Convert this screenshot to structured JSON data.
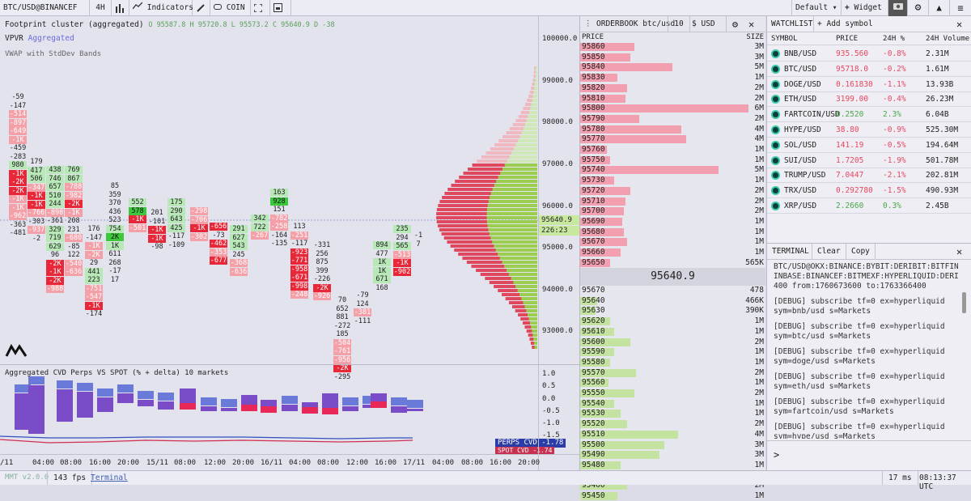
{
  "toolbar": {
    "symbol": "BTC/USD@BINANCEF",
    "timeframe": "4H",
    "indicators": "Indicators",
    "coin": "COIN",
    "layout": "Default",
    "widget": "Widget"
  },
  "chart": {
    "title": "Footprint cluster (aggregated)",
    "ohlc": "O 95587.8 H 95720.8 L 95573.2 C 95640.9 D -38",
    "vpvr": "VPVR",
    "vpvr_sub": "Aggregated",
    "vwap": "VWAP with StdDev Bands",
    "price_ticks": [
      "100000.0",
      "99000.0",
      "98000.0",
      "97000.0",
      "96000.0",
      "95500.0",
      "95000.0",
      "94000.0",
      "93000.0"
    ],
    "current_price": "95640.9",
    "countdown": "226:23",
    "cvd_title": "Aggregated CVD Perps VS SPOT (% + delta) 10 markets",
    "cvd_ticks": [
      "1.0",
      "0.5",
      "0.0",
      "-0.5",
      "-1.0",
      "-1.5"
    ],
    "cvd_perps_label": "PERPS CVD",
    "cvd_perps_value": "-1.78",
    "cvd_spot_label": "SPOT CVD",
    "cvd_spot_value": "-1.74",
    "time_ticks": [
      "/11",
      "04:00",
      "08:00",
      "16:00",
      "20:00",
      "15/11",
      "08:00",
      "12:00",
      "20:00",
      "16/11",
      "04:00",
      "08:00",
      "12:00",
      "16:00",
      "17/11",
      "04:00",
      "08:00",
      "16:00",
      "20:00",
      "18/11"
    ]
  },
  "footprint": [
    {
      "cells": [
        [
          "-59",
          "n"
        ],
        [
          "-147",
          "n"
        ],
        [
          "-514",
          "r1"
        ],
        [
          "-897",
          "r1"
        ],
        [
          "-649",
          "r1"
        ],
        [
          "-1K",
          "r1"
        ],
        [
          "-459",
          "n"
        ],
        [
          "-283",
          "n"
        ],
        [
          "980",
          "g1"
        ],
        [
          "-1K",
          "r2"
        ],
        [
          "-2K",
          "r2"
        ],
        [
          "-2K",
          "r2"
        ],
        [
          "-1K",
          "r1"
        ],
        [
          "-1K",
          "r1"
        ],
        [
          "-962",
          "r1"
        ],
        [
          "-363",
          "n"
        ],
        [
          "-481",
          "n"
        ]
      ]
    },
    {
      "cells": [
        [
          "179",
          "n"
        ],
        [
          "417",
          "g1"
        ],
        [
          "506",
          "g1"
        ],
        [
          "-347",
          "r1"
        ],
        [
          "-1K",
          "r2"
        ],
        [
          "-1K",
          "r2"
        ],
        [
          "-766",
          "r1"
        ],
        [
          "-303",
          "n"
        ],
        [
          "-937",
          "r1"
        ],
        [
          "-2",
          "n"
        ]
      ]
    },
    {
      "cells": [
        [
          "438",
          "g1"
        ],
        [
          "746",
          "g1"
        ],
        [
          "657",
          "g1"
        ],
        [
          "510",
          "g1"
        ],
        [
          "244",
          "g1"
        ],
        [
          "-898",
          "r1"
        ],
        [
          "-361",
          "n"
        ],
        [
          "329",
          "g1"
        ],
        [
          "719",
          "g1"
        ],
        [
          "629",
          "g1"
        ],
        [
          "96",
          "n"
        ],
        [
          "-2K",
          "r2"
        ],
        [
          "-1K",
          "r2"
        ],
        [
          "-2K",
          "r2"
        ],
        [
          "-988",
          "r1"
        ]
      ]
    },
    {
      "cells": [
        [
          "769",
          "g1"
        ],
        [
          "867",
          "g1"
        ],
        [
          "-788",
          "r1"
        ],
        [
          "-982",
          "r1"
        ],
        [
          "-2K",
          "r2"
        ],
        [
          "-1K",
          "r1"
        ],
        [
          "208",
          "n"
        ],
        [
          "231",
          "n"
        ],
        [
          "-680",
          "r1"
        ],
        [
          "-85",
          "n"
        ],
        [
          "122",
          "n"
        ],
        [
          "-540",
          "r1"
        ],
        [
          "-636",
          "r1"
        ]
      ]
    },
    {
      "cells": [
        [
          "176",
          "n"
        ],
        [
          "-147",
          "n"
        ],
        [
          "-1K",
          "r1"
        ],
        [
          "-2K",
          "r1"
        ],
        [
          "29",
          "n"
        ],
        [
          "441",
          "g1"
        ],
        [
          "223",
          "g1"
        ],
        [
          "-751",
          "r1"
        ],
        [
          "-547",
          "r1"
        ],
        [
          "-1K",
          "r2"
        ],
        [
          "-174",
          "n"
        ]
      ]
    },
    {
      "cells": [
        [
          "85",
          "n"
        ],
        [
          "359",
          "n"
        ],
        [
          "370",
          "n"
        ],
        [
          "436",
          "n"
        ],
        [
          "523",
          "n"
        ],
        [
          "754",
          "g1"
        ],
        [
          "2K",
          "g2"
        ],
        [
          "1K",
          "g1"
        ],
        [
          "611",
          "n"
        ],
        [
          "268",
          "n"
        ],
        [
          "-17",
          "n"
        ],
        [
          "17",
          "n"
        ]
      ]
    },
    {
      "cells": [
        [
          "552",
          "g1"
        ],
        [
          "578",
          "g2"
        ],
        [
          "-1K",
          "r2"
        ],
        [
          "-501",
          "r1"
        ]
      ]
    },
    {
      "cells": [
        [
          "201",
          "n"
        ],
        [
          "-101",
          "n"
        ],
        [
          "-1K",
          "r2"
        ],
        [
          "-1K",
          "r2"
        ],
        [
          "-98",
          "n"
        ]
      ]
    },
    {
      "cells": [
        [
          "175",
          "g1"
        ],
        [
          "290",
          "g1"
        ],
        [
          "643",
          "g1"
        ],
        [
          "425",
          "g1"
        ],
        [
          "-117",
          "n"
        ],
        [
          "-109",
          "n"
        ]
      ]
    },
    {
      "cells": [
        [
          "-298",
          "r1"
        ],
        [
          "-706",
          "r1"
        ],
        [
          "-1K",
          "r2"
        ],
        [
          "-302",
          "r1"
        ]
      ]
    },
    {
      "cells": [
        [
          "-656",
          "r2"
        ],
        [
          "-73",
          "n"
        ],
        [
          "-462",
          "r2"
        ],
        [
          "-353",
          "r1"
        ],
        [
          "-677",
          "r2"
        ]
      ]
    },
    {
      "cells": [
        [
          "291",
          "g1"
        ],
        [
          "627",
          "g1"
        ],
        [
          "543",
          "g1"
        ],
        [
          "245",
          "n"
        ],
        [
          "-368",
          "r1"
        ],
        [
          "-636",
          "r1"
        ]
      ]
    },
    {
      "cells": [
        [
          "342",
          "g1"
        ],
        [
          "722",
          "g1"
        ],
        [
          "-267",
          "r1"
        ]
      ]
    },
    {
      "cells": [
        [
          "163",
          "g1"
        ],
        [
          "928",
          "g2"
        ],
        [
          "151",
          "n"
        ],
        [
          "-782",
          "r1"
        ],
        [
          "-258",
          "r1"
        ],
        [
          "-164",
          "n"
        ],
        [
          "-135",
          "n"
        ]
      ]
    },
    {
      "cells": [
        [
          "113",
          "n"
        ],
        [
          "-251",
          "r1"
        ],
        [
          "-117",
          "n"
        ],
        [
          "-923",
          "r2"
        ],
        [
          "-771",
          "r2"
        ],
        [
          "-958",
          "r2"
        ],
        [
          "-671",
          "r2"
        ],
        [
          "-998",
          "r2"
        ],
        [
          "-248",
          "r1"
        ]
      ]
    },
    {
      "cells": [
        [
          "-331",
          "n"
        ],
        [
          "256",
          "n"
        ],
        [
          "875",
          "n"
        ],
        [
          "399",
          "n"
        ],
        [
          "-226",
          "n"
        ],
        [
          "-2K",
          "r2"
        ],
        [
          "-926",
          "r1"
        ]
      ]
    },
    {
      "cells": [
        [
          "70",
          "n"
        ],
        [
          "652",
          "n"
        ],
        [
          "881",
          "n"
        ],
        [
          "-272",
          "n"
        ],
        [
          "185",
          "n"
        ],
        [
          "-504",
          "r1"
        ],
        [
          "-761",
          "r1"
        ],
        [
          "-956",
          "r1"
        ],
        [
          "-2K",
          "r2"
        ],
        [
          "-295",
          "n"
        ]
      ]
    },
    {
      "cells": [
        [
          "-79",
          "n"
        ],
        [
          "124",
          "n"
        ],
        [
          "-381",
          "r1"
        ],
        [
          "-111",
          "n"
        ]
      ]
    },
    {
      "cells": [
        [
          "894",
          "g1"
        ],
        [
          "477",
          "n"
        ],
        [
          "1K",
          "g1"
        ],
        [
          "1K",
          "g1"
        ],
        [
          "671",
          "g1"
        ],
        [
          "168",
          "n"
        ]
      ]
    },
    {
      "cells": [
        [
          "235",
          "g1"
        ],
        [
          "294",
          "n"
        ],
        [
          "565",
          "g1"
        ],
        [
          "-513",
          "r1"
        ],
        [
          "-1K",
          "r2"
        ],
        [
          "-902",
          "r2"
        ]
      ]
    },
    {
      "cells": [
        [
          "-1",
          "n"
        ],
        [
          "7",
          "n"
        ]
      ]
    }
  ],
  "orderbook": {
    "title": "ORDERBOOK btc/usd",
    "depth": "10",
    "currency": "USD",
    "col_price": "PRICE",
    "col_size": "SIZE",
    "asks": [
      [
        "95860",
        "3M",
        32
      ],
      [
        "95850",
        "3M",
        30
      ],
      [
        "95840",
        "5M",
        55
      ],
      [
        "95830",
        "1M",
        22
      ],
      [
        "95820",
        "2M",
        28
      ],
      [
        "95810",
        "2M",
        27
      ],
      [
        "95800",
        "6M",
        100
      ],
      [
        "95790",
        "2M",
        35
      ],
      [
        "95780",
        "4M",
        60
      ],
      [
        "95770",
        "4M",
        63
      ],
      [
        "95760",
        "1M",
        16
      ],
      [
        "95750",
        "1M",
        18
      ],
      [
        "95740",
        "5M",
        82
      ],
      [
        "95730",
        "1M",
        20
      ],
      [
        "95720",
        "2M",
        30
      ],
      [
        "95710",
        "2M",
        27
      ],
      [
        "95700",
        "2M",
        26
      ],
      [
        "95690",
        "1M",
        25
      ],
      [
        "95680",
        "1M",
        26
      ],
      [
        "95670",
        "1M",
        28
      ],
      [
        "95660",
        "1M",
        24
      ],
      [
        "95650",
        "565K",
        18
      ]
    ],
    "mid": "95640.9",
    "bids": [
      [
        "95670",
        "478",
        0
      ],
      [
        "95640",
        "466K",
        10
      ],
      [
        "95630",
        "390K",
        9
      ],
      [
        "95620",
        "1M",
        18
      ],
      [
        "95610",
        "1M",
        20
      ],
      [
        "95600",
        "2M",
        30
      ],
      [
        "95590",
        "1M",
        20
      ],
      [
        "95580",
        "1M",
        18
      ],
      [
        "95570",
        "2M",
        33
      ],
      [
        "95560",
        "1M",
        17
      ],
      [
        "95550",
        "2M",
        32
      ],
      [
        "95540",
        "1M",
        20
      ],
      [
        "95530",
        "1M",
        24
      ],
      [
        "95520",
        "2M",
        28
      ],
      [
        "95510",
        "4M",
        58
      ],
      [
        "95500",
        "3M",
        50
      ],
      [
        "95490",
        "3M",
        47
      ],
      [
        "95480",
        "1M",
        24
      ],
      [
        "95470",
        "2M",
        34
      ],
      [
        "95460",
        "2M",
        28
      ],
      [
        "95450",
        "1M",
        22
      ]
    ]
  },
  "watchlist": {
    "title": "WATCHLIST",
    "add": "Add symbol",
    "col_symbol": "SYMBOL",
    "col_price": "PRICE",
    "col_change": "24H %",
    "col_volume": "24H Volume",
    "rows": [
      [
        "BNB/USD",
        "935.560",
        "-0.8%",
        "2.31M",
        "neg"
      ],
      [
        "BTC/USD",
        "95718.0",
        "-0.2%",
        "1.61M",
        "neg"
      ],
      [
        "DOGE/USD",
        "0.161830",
        "-1.1%",
        "13.93B",
        "neg"
      ],
      [
        "ETH/USD",
        "3199.00",
        "-0.4%",
        "26.23M",
        "neg"
      ],
      [
        "FARTCOIN/USD",
        "0.2520",
        "2.3%",
        "6.04B",
        "pos"
      ],
      [
        "HYPE/USD",
        "38.80",
        "-0.9%",
        "525.30M",
        "neg"
      ],
      [
        "SOL/USD",
        "141.19",
        "-0.5%",
        "194.64M",
        "neg"
      ],
      [
        "SUI/USD",
        "1.7205",
        "-1.9%",
        "501.78M",
        "neg"
      ],
      [
        "TRUMP/USD",
        "7.0447",
        "-2.1%",
        "202.81M",
        "neg"
      ],
      [
        "TRX/USD",
        "0.292780",
        "-1.5%",
        "490.93M",
        "neg"
      ],
      [
        "XRP/USD",
        "2.2660",
        "0.3%",
        "2.45B",
        "pos"
      ]
    ]
  },
  "terminal": {
    "title": "TERMINAL",
    "clear": "Clear",
    "copy": "Copy",
    "lines": [
      "BTC/USD@OKX:BINANCE:BYBIT:DERIBIT:BITFINEXF:CO INBASE:BINANCEF:BITMEXF:HYPERLIQUID:DERIBITF@14 400 from:1760673600 to:1763366400",
      "[DEBUG] subscribe tf=0 ex=hyperliquid sym=bnb/usd s=Markets",
      "[DEBUG] subscribe tf=0 ex=hyperliquid sym=btc/usd s=Markets",
      "[DEBUG] subscribe tf=0 ex=hyperliquid sym=doge/usd s=Markets",
      "[DEBUG] subscribe tf=0 ex=hyperliquid sym=eth/usd s=Markets",
      "[DEBUG] subscribe tf=0 ex=hyperliquid sym=fartcoin/usd s=Markets",
      "[DEBUG] subscribe tf=0 ex=hyperliquid sym=hype/usd s=Markets",
      "[DEBUG] subscribe tf=0 ex=hyperliquid sym=sol/usd s=Markets"
    ],
    "prompt": ">"
  },
  "status": {
    "version": "MMT v2.0.0",
    "fps": "143 fps",
    "terminal_link": "Terminal",
    "latency": "17 ms",
    "clock": "08:13:37 UTC"
  }
}
